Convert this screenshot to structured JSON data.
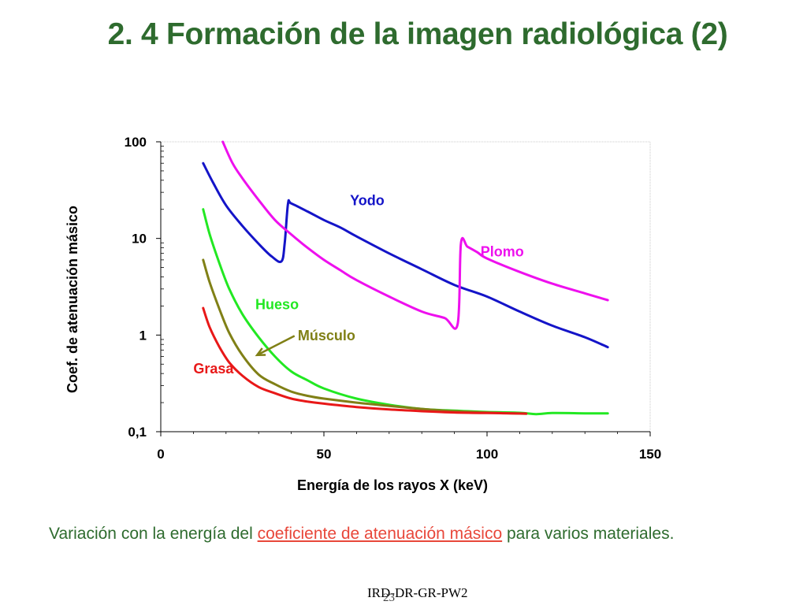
{
  "slide": {
    "title": "2. 4 Formación de la imagen radiológica (2)",
    "caption_pre": "Variación con la energía del ",
    "caption_highlight": "coeficiente de atenuación másico",
    "caption_post": " para varios materiales.",
    "footer_ref": "IRD-DR-GR-PW2",
    "page_number": "23"
  },
  "colors": {
    "title": "#2e6b2e",
    "caption": "#2e6b2e",
    "highlight": "#e8473a"
  },
  "chart_data": {
    "type": "line",
    "xlabel": "Energía de los rayos X (keV)",
    "ylabel": "Coef. de atenuación másico",
    "xlim": [
      0,
      150
    ],
    "ylim": [
      0.1,
      100
    ],
    "yscale": "log",
    "grid": false,
    "x_ticks": [
      0,
      50,
      100,
      150
    ],
    "x_tick_labels": [
      "0",
      "50",
      "100",
      "150"
    ],
    "y_ticks": [
      0.1,
      1,
      10,
      100
    ],
    "y_tick_labels": [
      "0,1",
      "1",
      "10",
      "100"
    ],
    "series": [
      {
        "name": "Yodo",
        "color": "#1414c8",
        "x": [
          13,
          16,
          20,
          25,
          30,
          34,
          37,
          38,
          39,
          40,
          45,
          50,
          55,
          60,
          70,
          80,
          90,
          100,
          110,
          120,
          130,
          137
        ],
        "y": [
          60,
          38,
          22,
          13.5,
          8.8,
          6.5,
          5.8,
          9,
          23,
          23,
          19,
          15.5,
          13,
          10.5,
          7,
          4.8,
          3.3,
          2.5,
          1.75,
          1.25,
          0.95,
          0.75
        ]
      },
      {
        "name": "Plomo",
        "color": "#ee10ee",
        "x": [
          19,
          22,
          25,
          30,
          35,
          40,
          45,
          50,
          55,
          60,
          70,
          80,
          87,
          91,
          92,
          94,
          97,
          100,
          110,
          120,
          130,
          137
        ],
        "y": [
          100,
          60,
          42,
          25,
          15.5,
          11,
          8,
          6,
          4.7,
          3.7,
          2.5,
          1.75,
          1.5,
          1.3,
          8.9,
          8.2,
          7.2,
          6.2,
          4.5,
          3.4,
          2.7,
          2.3
        ]
      },
      {
        "name": "Hueso",
        "color": "#22e822",
        "x": [
          13,
          15,
          18,
          21,
          25,
          30,
          35,
          40,
          45,
          50,
          60,
          70,
          80,
          90,
          100,
          110,
          115,
          120,
          130,
          137
        ],
        "y": [
          20,
          11,
          5.5,
          3,
          1.65,
          0.95,
          0.6,
          0.42,
          0.34,
          0.28,
          0.22,
          0.19,
          0.172,
          0.165,
          0.16,
          0.157,
          0.152,
          0.156,
          0.155,
          0.155
        ]
      },
      {
        "name": "Músculo",
        "color": "#808016",
        "x": [
          13,
          15,
          18,
          21,
          25,
          30,
          35,
          40,
          45,
          50,
          60,
          70,
          80,
          90,
          100,
          112
        ],
        "y": [
          6,
          3.5,
          1.85,
          1.05,
          0.62,
          0.39,
          0.31,
          0.26,
          0.235,
          0.22,
          0.2,
          0.185,
          0.172,
          0.163,
          0.158,
          0.153
        ]
      },
      {
        "name": "Grasa",
        "color": "#e81818",
        "x": [
          13,
          15,
          18,
          21,
          25,
          30,
          35,
          40,
          45,
          50,
          60,
          70,
          80,
          90,
          100,
          112
        ],
        "y": [
          1.9,
          1.2,
          0.75,
          0.52,
          0.38,
          0.29,
          0.25,
          0.22,
          0.205,
          0.195,
          0.18,
          0.17,
          0.163,
          0.158,
          0.156,
          0.154
        ]
      }
    ],
    "annotations": [
      {
        "text": "Yodo",
        "color": "#1414c8"
      },
      {
        "text": "Plomo",
        "color": "#ee10ee"
      },
      {
        "text": "Hueso",
        "color": "#22e822"
      },
      {
        "text": "Músculo",
        "color": "#808016"
      },
      {
        "text": "Grasa",
        "color": "#e81818"
      }
    ]
  }
}
